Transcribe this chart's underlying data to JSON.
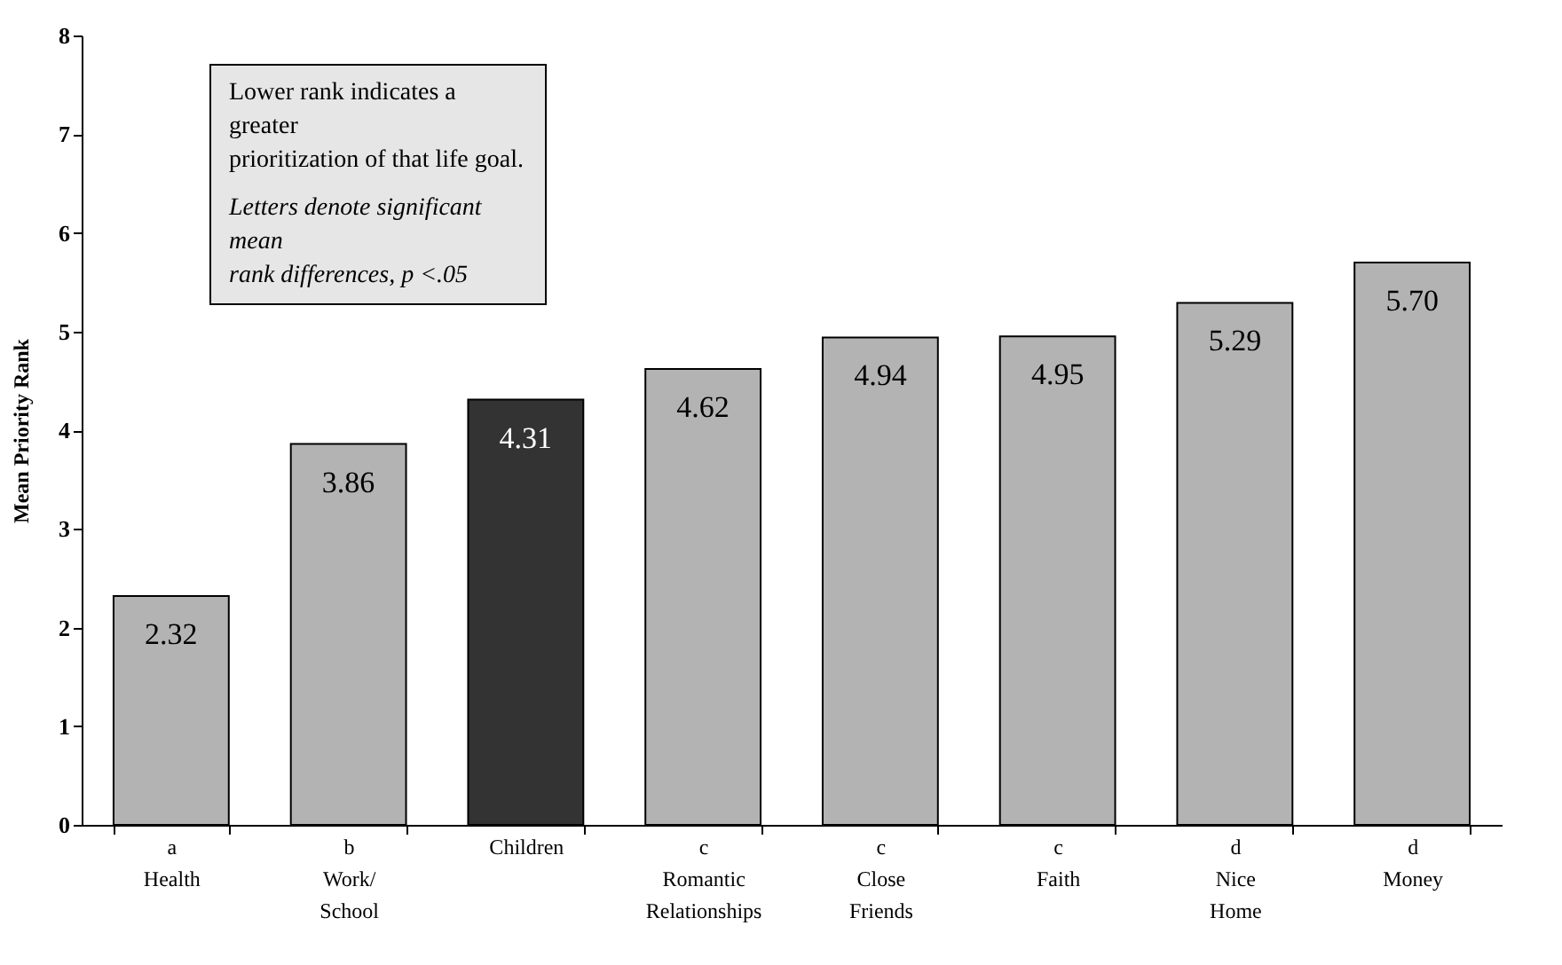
{
  "chart_data": {
    "type": "bar",
    "ylabel": "Mean Priority Rank",
    "categories": [
      "a\nHealth",
      "b\nWork/\nSchool",
      "Children",
      "c\nRomantic\nRelationships",
      "c\nClose\nFriends",
      "c\nFaith",
      "d\nNice\nHome",
      "d\nMoney"
    ],
    "values": [
      2.32,
      3.86,
      4.31,
      4.62,
      4.94,
      4.95,
      5.29,
      5.7
    ],
    "value_labels": [
      "2.32",
      "3.86",
      "4.31",
      "4.62",
      "4.94",
      "4.95",
      "5.29",
      "5.70"
    ],
    "colors": [
      "#b3b3b3",
      "#b3b3b3",
      "#333333",
      "#b3b3b3",
      "#b3b3b3",
      "#b3b3b3",
      "#b3b3b3",
      "#b3b3b3"
    ],
    "ylim": [
      0,
      8
    ],
    "yticks": [
      0,
      1,
      2,
      3,
      4,
      5,
      6,
      7,
      8
    ],
    "grid": false,
    "annotations": [
      "Lower rank indicates a greater\nprioritization of that life goal.",
      "Letters denote significant mean\nrank differences, p <.05"
    ]
  }
}
